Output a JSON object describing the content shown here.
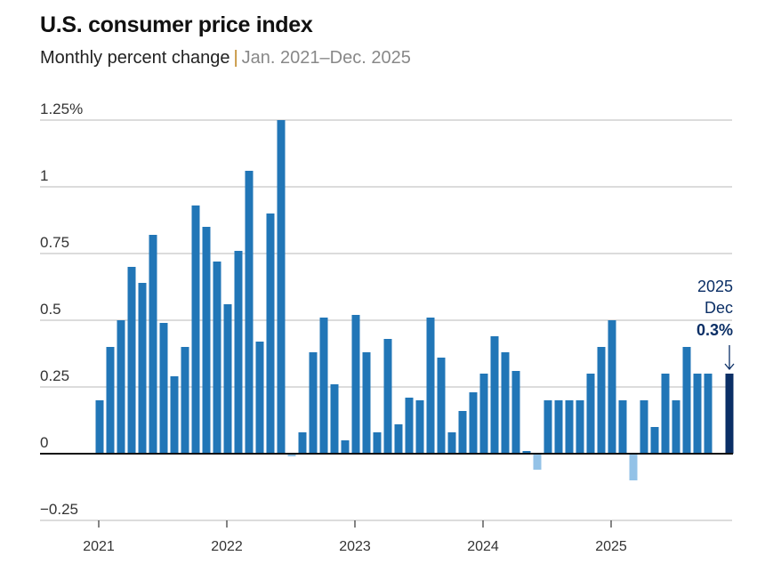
{
  "title": "U.S. consumer price index",
  "subtitle": "Monthly percent change",
  "subtitle_separator": "|",
  "date_range": "Jan. 2021–Dec. 2025",
  "colors": {
    "positive": "#2176b7",
    "negative": "#93c2e7",
    "highlight": "#0b2f66",
    "grid": "#d0d0d0"
  },
  "chart_data": {
    "type": "bar",
    "title": "U.S. consumer price index",
    "subtitle": "Monthly percent change",
    "ylim": [
      -0.25,
      1.25
    ],
    "yticks": [
      -0.25,
      0,
      0.25,
      0.5,
      0.75,
      1,
      1.25
    ],
    "ytick_labels": [
      "−0.25",
      "0",
      "0.25",
      "0.5",
      "0.75",
      "1",
      "1.25%"
    ],
    "xtick_labels": [
      "2021",
      "2022",
      "2023",
      "2024",
      "2025"
    ],
    "grid": true,
    "start": "2021-01",
    "values": [
      0.2,
      0.4,
      0.5,
      0.7,
      0.64,
      0.82,
      0.49,
      0.29,
      0.4,
      0.93,
      0.85,
      0.72,
      0.56,
      0.76,
      1.06,
      0.42,
      0.9,
      1.25,
      -0.01,
      0.08,
      0.38,
      0.51,
      0.26,
      0.05,
      0.52,
      0.38,
      0.08,
      0.43,
      0.11,
      0.21,
      0.2,
      0.51,
      0.36,
      0.08,
      0.16,
      0.23,
      0.3,
      0.44,
      0.38,
      0.31,
      0.01,
      -0.06,
      0.2,
      0.2,
      0.2,
      0.2,
      0.3,
      0.4,
      0.5,
      0.2,
      -0.1,
      0.2,
      0.1,
      0.3,
      0.2,
      0.4,
      0.3,
      0.3,
      null,
      0.3
    ],
    "annotation": {
      "year": "2025",
      "month": "Dec",
      "value": "0.3%"
    }
  }
}
